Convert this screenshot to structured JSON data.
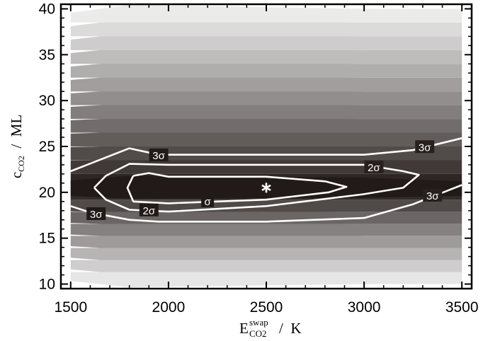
{
  "chart_data": {
    "type": "contour",
    "title": "",
    "x_axis": {
      "label_main": "E",
      "label_sup": "swap",
      "label_sub": "CO2",
      "label_unit": "/  K",
      "range": [
        1450,
        3550
      ],
      "ticks": [
        1500,
        2000,
        2500,
        3000,
        3500
      ],
      "tick_labels": [
        "1500",
        "2000",
        "2500",
        "3000",
        "3500"
      ]
    },
    "y_axis": {
      "label_main": "c",
      "label_sub": "CO2",
      "label_unit": "/  ML",
      "range": [
        9.5,
        40.5
      ],
      "ticks": [
        10,
        15,
        20,
        25,
        30,
        35,
        40
      ],
      "tick_labels": [
        "10",
        "15",
        "20",
        "25",
        "30",
        "35",
        "40"
      ]
    },
    "filled_region": {
      "x": [
        1500,
        3500
      ],
      "y": [
        10,
        40
      ]
    },
    "best_fit": {
      "x": 2500,
      "y": 20.5,
      "marker": "asterisk"
    },
    "contours": [
      {
        "label": "σ",
        "label_at": [
          2200,
          19.0
        ],
        "points": [
          [
            1820,
            21.8
          ],
          [
            1900,
            22.1
          ],
          [
            2000,
            21.7
          ],
          [
            2500,
            21.7
          ],
          [
            2800,
            21.2
          ],
          [
            2910,
            20.6
          ],
          [
            2820,
            20.0
          ],
          [
            2500,
            19.2
          ],
          [
            2000,
            18.8
          ],
          [
            1820,
            19.0
          ],
          [
            1790,
            20.5
          ],
          [
            1820,
            21.8
          ]
        ]
      },
      {
        "label": "2σ",
        "label_at": [
          1900,
          18.0
        ],
        "points": [
          [
            1620,
            20.5
          ],
          [
            1680,
            21.8
          ],
          [
            1800,
            23.1
          ],
          [
            2000,
            23.0
          ],
          [
            3000,
            23.0
          ],
          [
            3200,
            22.3
          ],
          [
            3280,
            21.9
          ],
          [
            3200,
            20.5
          ],
          [
            3000,
            19.8
          ],
          [
            2500,
            18.5
          ],
          [
            2000,
            17.9
          ],
          [
            1800,
            18.1
          ],
          [
            1680,
            19.2
          ],
          [
            1620,
            20.5
          ]
        ]
      },
      {
        "label": "3σ",
        "label_at": [
          1950,
          24.0
        ],
        "points": [
          [
            1500,
            22.3
          ],
          [
            1800,
            24.8
          ],
          [
            1950,
            24.1
          ],
          [
            3000,
            24.1
          ],
          [
            3250,
            24.6
          ],
          [
            3500,
            25.9
          ]
        ]
      },
      {
        "label": "3σ",
        "label_at": [
          1630,
          17.6
        ],
        "points": [
          [
            1500,
            18.5
          ],
          [
            1600,
            17.8
          ],
          [
            1800,
            17.0
          ],
          [
            1950,
            16.8
          ],
          [
            2500,
            16.8
          ],
          [
            3000,
            17.2
          ],
          [
            3250,
            18.7
          ],
          [
            3500,
            20.8
          ]
        ]
      }
    ],
    "colors": {
      "background_top": "#f2f2f2",
      "background_bottom": "#f0f0f0",
      "core": "#221a18",
      "contour_line": "#ffffff",
      "axis": "#000000"
    }
  }
}
